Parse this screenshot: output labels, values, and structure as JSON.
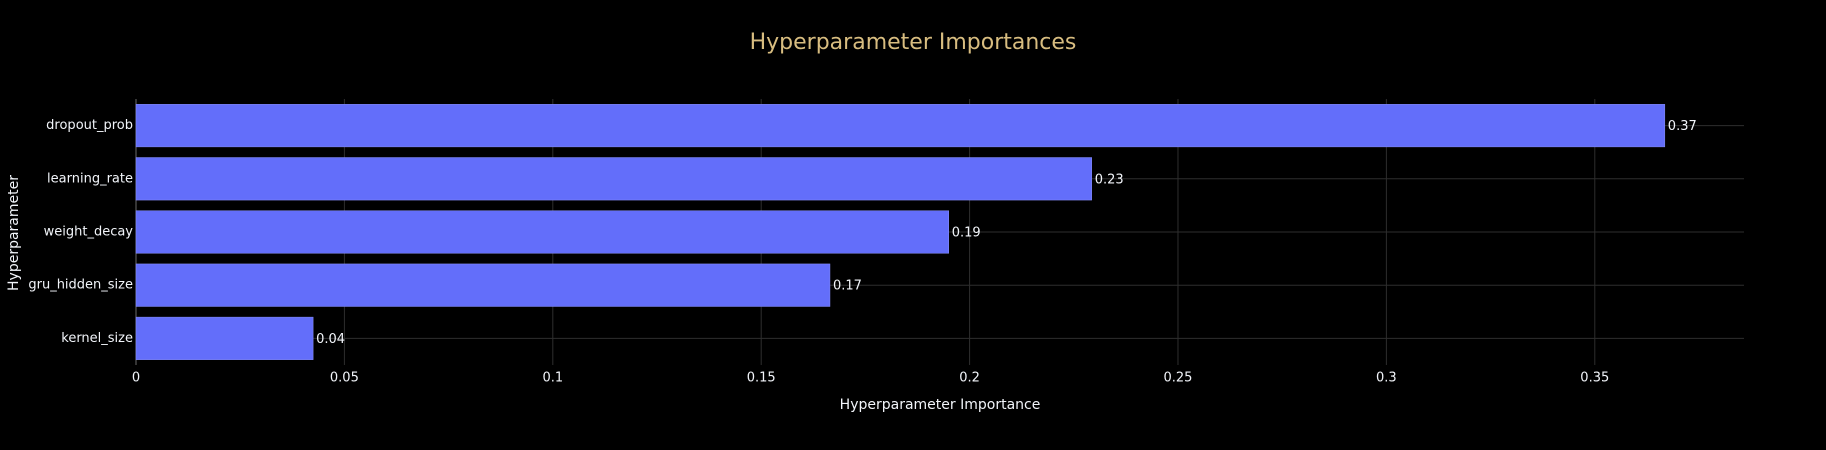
{
  "chart_data": {
    "type": "hbar",
    "title": "Hyperparameter Importances",
    "x_label": "Hyperparameter Importance",
    "y_label": "Hyperparameter",
    "categories": [
      "dropout_prob",
      "learning_rate",
      "weight_decay",
      "gru_hidden_size",
      "kernel_size"
    ],
    "values": [
      0.3668,
      0.2293,
      0.195,
      0.1665,
      0.0425
    ],
    "value_labels": [
      "0.37",
      "0.23",
      "0.19",
      "0.17",
      "0.04"
    ],
    "color": "#636efa",
    "xlim": [
      0,
      0.3858
    ],
    "xticks": [
      0,
      0.05,
      0.1,
      0.15,
      0.2,
      0.25,
      0.3,
      0.35
    ],
    "grid": true
  }
}
